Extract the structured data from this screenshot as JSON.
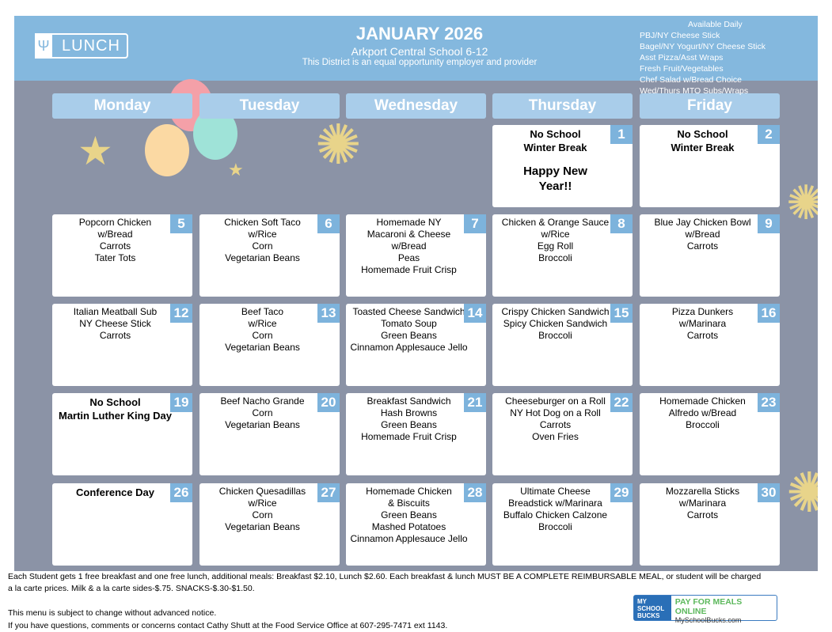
{
  "header": {
    "logo_label": "LUNCH",
    "title": "JANUARY 2026",
    "school": "Arkport Central School 6-12",
    "equal_opportunity": "This District is an equal opportunity employer and provider"
  },
  "available_daily": {
    "heading": "Available Daily",
    "items": [
      "PBJ/NY Cheese Stick",
      "Bagel/NY Yogurt/NY Cheese Stick",
      "Asst Pizza/Asst Wraps",
      "Fresh Fruit/Vegetables",
      "Chef Salad w/Bread Choice",
      "Wed/Thurs MTO Subs/Wraps"
    ]
  },
  "days": [
    "Monday",
    "Tuesday",
    "Wednesday",
    "Thursday",
    "Friday"
  ],
  "weeks": [
    [
      null,
      null,
      null,
      {
        "date": "1",
        "items": [
          "No School",
          "Winter Break"
        ],
        "extra": "Happy New Year!!",
        "bold": true
      },
      {
        "date": "2",
        "items": [
          "No School",
          "Winter Break"
        ],
        "bold": true
      }
    ],
    [
      {
        "date": "5",
        "items": [
          "Popcorn Chicken",
          "w/Bread",
          "Carrots",
          "Tater Tots"
        ]
      },
      {
        "date": "6",
        "items": [
          "Chicken Soft Taco",
          "w/Rice",
          "Corn",
          "Vegetarian Beans"
        ]
      },
      {
        "date": "7",
        "items": [
          "Homemade NY",
          "Macaroni & Cheese",
          "w/Bread",
          "Peas",
          "Homemade Fruit Crisp"
        ]
      },
      {
        "date": "8",
        "items": [
          "Chicken & Orange Sauce",
          "w/Rice",
          "Egg Roll",
          "Broccoli"
        ]
      },
      {
        "date": "9",
        "items": [
          "Blue Jay Chicken Bowl",
          "w/Bread",
          "Carrots"
        ]
      }
    ],
    [
      {
        "date": "12",
        "items": [
          "Italian Meatball Sub",
          "NY Cheese Stick",
          "Carrots"
        ]
      },
      {
        "date": "13",
        "items": [
          "Beef Taco",
          "w/Rice",
          "Corn",
          "Vegetarian Beans"
        ]
      },
      {
        "date": "14",
        "items": [
          "Toasted Cheese Sandwich",
          "Tomato Soup",
          "Green Beans",
          "Cinnamon Applesauce Jello"
        ]
      },
      {
        "date": "15",
        "items": [
          "Crispy Chicken Sandwich",
          "Spicy Chicken Sandwich",
          "Broccoli"
        ]
      },
      {
        "date": "16",
        "items": [
          "Pizza Dunkers",
          "w/Marinara",
          "Carrots"
        ]
      }
    ],
    [
      {
        "date": "19",
        "items": [
          "No School",
          "Martin Luther King Day"
        ],
        "bold": true
      },
      {
        "date": "20",
        "items": [
          "Beef Nacho Grande",
          "Corn",
          "Vegetarian Beans"
        ]
      },
      {
        "date": "21",
        "items": [
          "Breakfast Sandwich",
          "Hash Browns",
          "Green Beans",
          "Homemade Fruit Crisp"
        ]
      },
      {
        "date": "22",
        "items": [
          "Cheeseburger on a Roll",
          "NY Hot Dog on a Roll",
          "Carrots",
          "Oven Fries"
        ]
      },
      {
        "date": "23",
        "items": [
          "Homemade Chicken",
          "Alfredo w/Bread",
          "Broccoli"
        ]
      }
    ],
    [
      {
        "date": "26",
        "items": [
          "Conference Day"
        ],
        "bold": true
      },
      {
        "date": "27",
        "items": [
          "Chicken Quesadillas",
          "w/Rice",
          "Corn",
          "Vegetarian Beans"
        ]
      },
      {
        "date": "28",
        "items": [
          "Homemade Chicken",
          "& Biscuits",
          "Green Beans",
          "Mashed Potatoes",
          "Cinnamon Applesauce Jello"
        ]
      },
      {
        "date": "29",
        "items": [
          "Ultimate Cheese",
          "Breadstick w/Marinara",
          "Buffalo Chicken Calzone",
          "Broccoli"
        ]
      },
      {
        "date": "30",
        "items": [
          "Mozzarella Sticks",
          "w/Marinara",
          "Carrots"
        ]
      }
    ]
  ],
  "footer": {
    "line1": "Each Student gets 1 free breakfast and one free lunch, additional meals: Breakfast $2.10, Lunch $2.60. Each breakfast & lunch MUST BE A COMPLETE REIMBURSABLE MEAL, or student will be charged",
    "line2": "a la carte prices. Milk & a la carte sides-$.75. SNACKS-$.30-$1.50.",
    "line3": "This menu is subject to change without advanced notice.",
    "line4": "If you have questions, comments or concerns contact Cathy Shutt at the Food Service Office at 607-295-7471 ext 1143."
  },
  "myschoolbucks": {
    "logo": "MY SCHOOL BUCKS",
    "tagline": "PAY FOR MEALS ONLINE",
    "site": "MySchoolBucks.com"
  },
  "colors": {
    "banner": "#84b8de",
    "background": "#8b93a6",
    "day_header": "#a9cdea",
    "date_badge": "#7db3dc"
  }
}
